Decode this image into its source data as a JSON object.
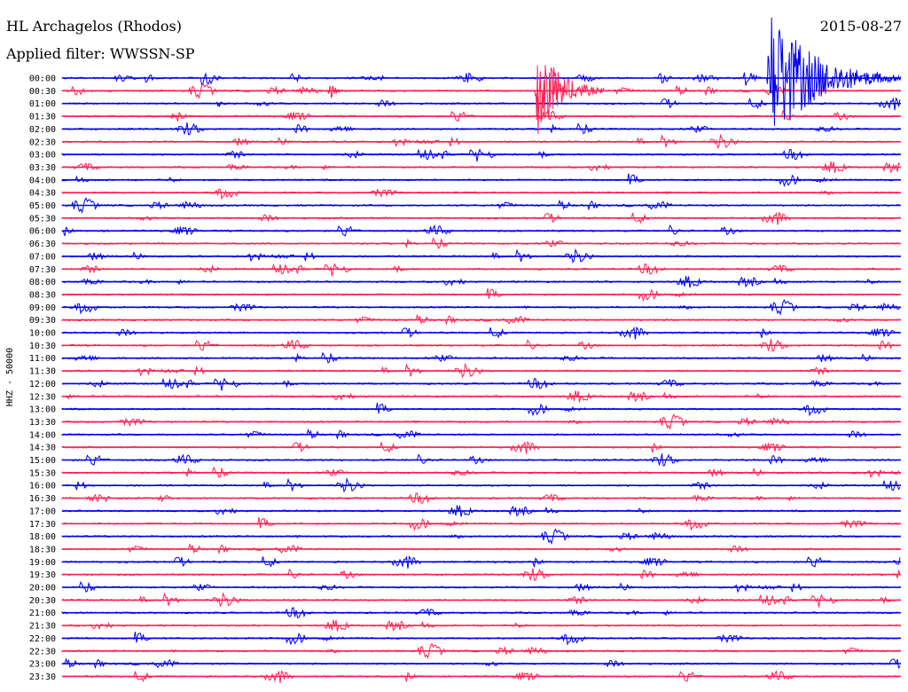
{
  "header": {
    "station": "HL Archagelos (Rhodos)",
    "filter": "Applied filter: WWSSN-SP",
    "date": "2015-08-27"
  },
  "chart_data": {
    "type": "line",
    "title": "HL Archagelos (Rhodos)",
    "subtitle": "Applied filter: WWSSN-SP",
    "date": "2015-08-27",
    "ylabel": "HHZ - 50000",
    "xlabel": "",
    "grid": false,
    "colors": [
      "#0000ee",
      "#ff2052"
    ],
    "categories": [
      "00:00",
      "00:30",
      "01:00",
      "01:30",
      "02:00",
      "02:30",
      "03:00",
      "03:30",
      "04:00",
      "04:30",
      "05:00",
      "05:30",
      "06:00",
      "06:30",
      "07:00",
      "07:30",
      "08:00",
      "08:30",
      "09:00",
      "09:30",
      "10:00",
      "10:30",
      "11:00",
      "11:30",
      "12:00",
      "12:30",
      "13:00",
      "13:30",
      "14:00",
      "14:30",
      "15:00",
      "15:30",
      "16:00",
      "16:30",
      "17:00",
      "17:30",
      "18:00",
      "18:30",
      "19:00",
      "19:30",
      "20:00",
      "20:30",
      "21:00",
      "21:30",
      "22:00",
      "22:30",
      "23:00",
      "23:30"
    ],
    "events": [
      {
        "row": "00:30",
        "at_minute": 9.5,
        "amplitude": 2.2
      },
      {
        "row": "00:30",
        "at_minute": 17.5,
        "amplitude": 4.5
      },
      {
        "row": "01:00",
        "at_minute": 5.5,
        "amplitude": 1.0
      },
      {
        "row": "01:30",
        "at_minute": 3.8,
        "amplitude": 1.0
      },
      {
        "row": "00:30",
        "at_minute": 16.9,
        "amplitude": 9.0,
        "duration_minutes": 2.5
      },
      {
        "row": "00:00",
        "at_minute": 25.2,
        "amplitude": 12.0,
        "duration_minutes": 4.8
      }
    ]
  }
}
